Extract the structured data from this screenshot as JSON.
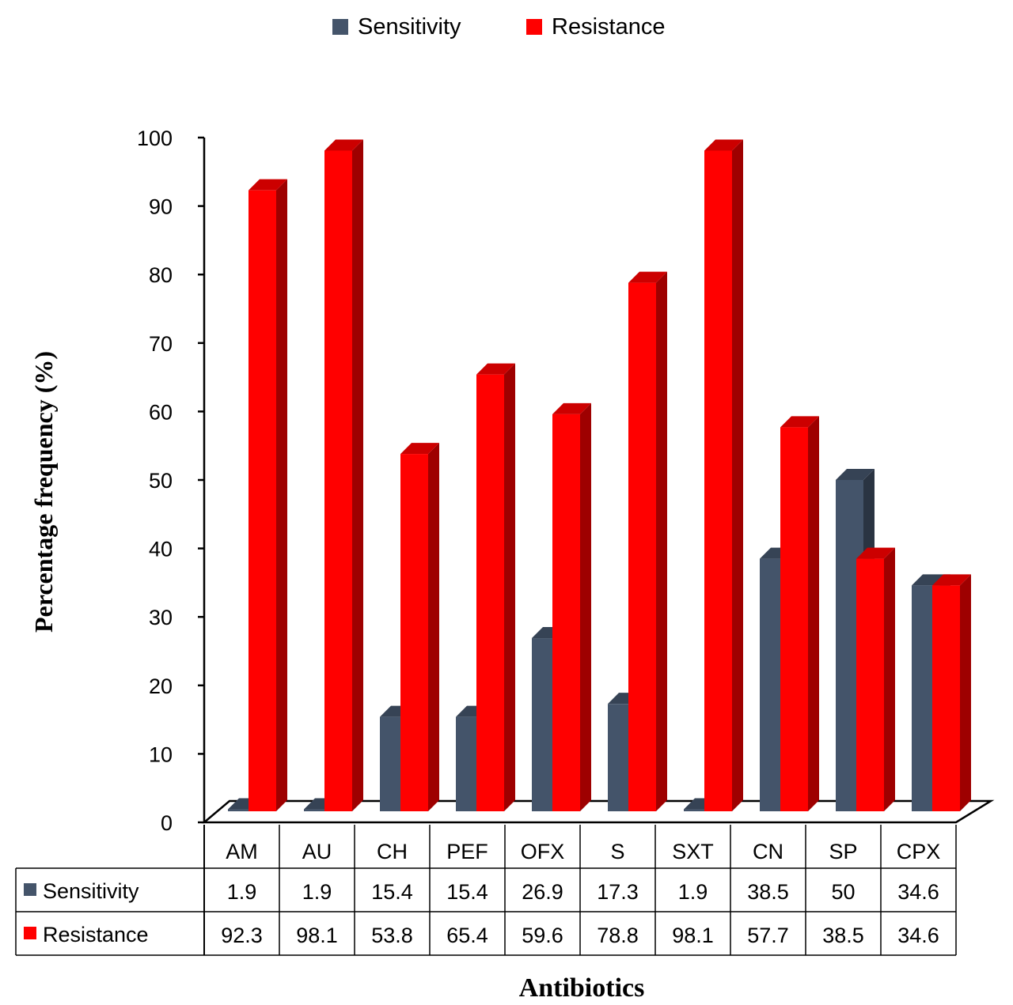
{
  "chart_data": {
    "type": "bar",
    "ylabel": "Percentage frequency (%)",
    "xlabel": "Antibiotics",
    "ylim": [
      0,
      100
    ],
    "yticks": [
      0,
      10,
      20,
      30,
      40,
      50,
      60,
      70,
      80,
      90,
      100
    ],
    "categories": [
      "AM",
      "AU",
      "CH",
      "PEF",
      "OFX",
      "S",
      "SXT",
      "CN",
      "SP",
      "CPX"
    ],
    "series": [
      {
        "name": "Sensitivity",
        "color": "#44546A",
        "values": [
          1.9,
          1.9,
          15.4,
          15.4,
          26.9,
          17.3,
          1.9,
          38.5,
          50,
          34.6
        ],
        "labels": [
          "1.9",
          "1.9",
          "15.4",
          "15.4",
          "26.9",
          "17.3",
          "1.9",
          "38.5",
          "50",
          "34.6"
        ]
      },
      {
        "name": "Resistance",
        "color": "#FF0000",
        "values": [
          92.3,
          98.1,
          53.8,
          65.4,
          59.6,
          78.8,
          98.1,
          57.7,
          38.5,
          34.6
        ],
        "labels": [
          "92.3",
          "98.1",
          "53.8",
          "65.4",
          "59.6",
          "78.8",
          "98.1",
          "57.7",
          "38.5",
          "34.6"
        ]
      }
    ],
    "legend": {
      "position": "top"
    },
    "grid": false,
    "style": "3d-clustered-column-with-data-table"
  }
}
